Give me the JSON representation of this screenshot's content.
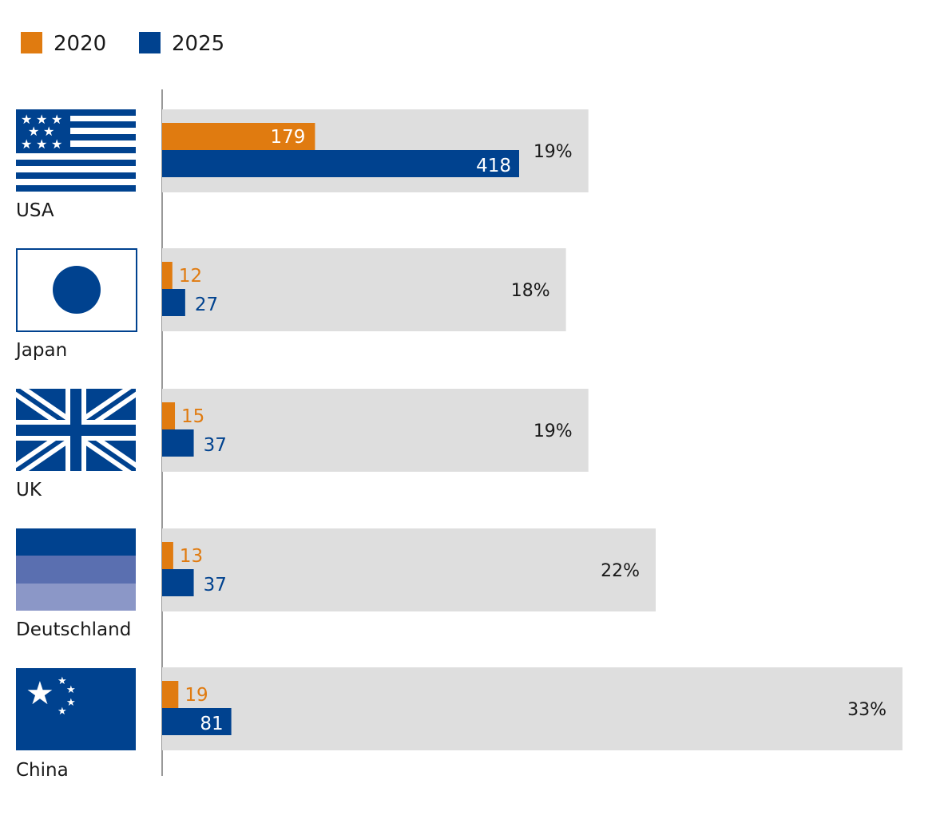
{
  "chart_data": {
    "type": "bar",
    "orientation": "horizontal",
    "legend_position": "top-left",
    "grid": false,
    "categories": [
      "USA",
      "Japan",
      "UK",
      "Deutschland",
      "China"
    ],
    "series": [
      {
        "name": "2020",
        "color": "#e07b10",
        "values": [
          179,
          12,
          15,
          13,
          19
        ],
        "labels": [
          "179",
          "12",
          "15",
          "13",
          "19"
        ]
      },
      {
        "name": "2025",
        "color": "#00428f",
        "values": [
          418,
          27,
          37,
          37,
          81
        ],
        "labels": [
          "418",
          "27",
          "37",
          "37",
          "81"
        ]
      }
    ],
    "growth_rates": [
      19,
      18,
      19,
      22,
      33
    ],
    "growth_labels": [
      "19%",
      "18%",
      "19%",
      "22%",
      "33%"
    ],
    "flags": [
      "usa-flag-icon",
      "japan-flag-icon",
      "uk-flag-icon",
      "germany-flag-icon",
      "china-flag-icon"
    ],
    "background_bar_color": "#dedede",
    "colors": {
      "orange": "#e07b10",
      "blue": "#00428f",
      "blue_mid": "#5a6fb0",
      "blue_light": "#8b97c7"
    }
  }
}
